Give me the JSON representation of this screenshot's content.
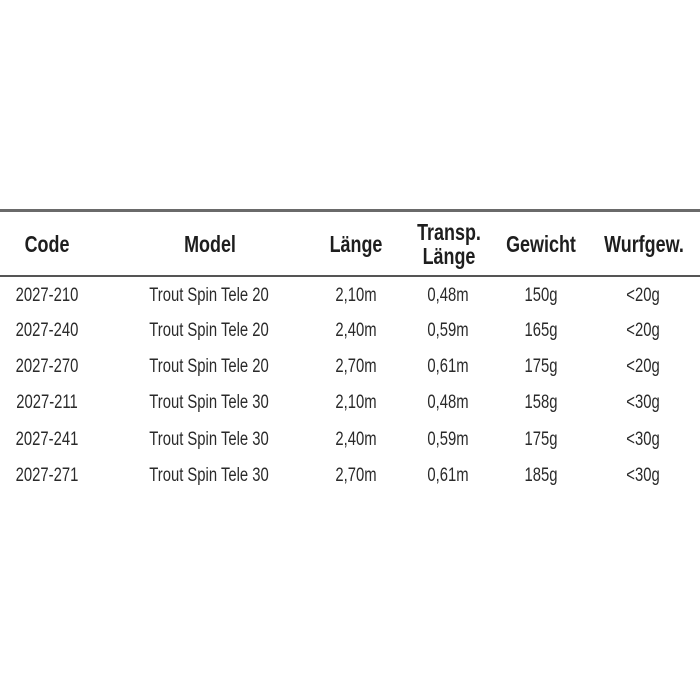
{
  "table": {
    "headers": [
      "Code",
      "Model",
      "Länge",
      "Transp. Länge",
      "Gewicht",
      "Wurfgew."
    ],
    "header_lines": {
      "transp_1": "Transp.",
      "transp_2": "Länge"
    },
    "rows": [
      [
        "2027-210",
        "Trout Spin Tele 20",
        "2,10m",
        "0,48m",
        "150g",
        "<20g"
      ],
      [
        "2027-240",
        "Trout Spin Tele 20",
        "2,40m",
        "0,59m",
        "165g",
        "<20g"
      ],
      [
        "2027-270",
        "Trout Spin Tele 20",
        "2,70m",
        "0,61m",
        "175g",
        "<20g"
      ],
      [
        "2027-211",
        "Trout Spin Tele 30",
        "2,10m",
        "0,48m",
        "158g",
        "<30g"
      ],
      [
        "2027-241",
        "Trout Spin Tele 30",
        "2,40m",
        "0,59m",
        "175g",
        "<30g"
      ],
      [
        "2027-271",
        "Trout Spin Tele 30",
        "2,70m",
        "0,61m",
        "185g",
        "<30g"
      ]
    ]
  }
}
